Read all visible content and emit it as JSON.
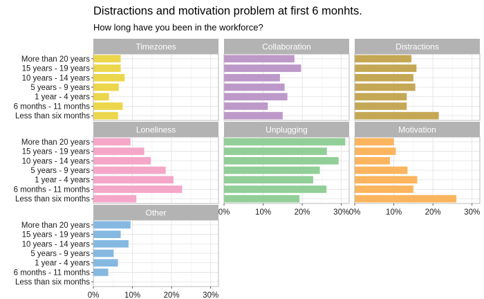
{
  "chart_data": {
    "type": "bar",
    "orientation": "horizontal",
    "title": "Distractions and motivation problem at first 6 monhts.",
    "subtitle": "How long have you been in the workforce?",
    "xlabel": "",
    "ylabel": "",
    "xlim": [
      0,
      0.32
    ],
    "x_ticks": [
      "0%",
      "10%",
      "20%",
      "30%"
    ],
    "x_tick_values": [
      0,
      0.1,
      0.2,
      0.3
    ],
    "grid": true,
    "categories": [
      "More than 20 years",
      "15 years - 19 years",
      "10 years - 14 years",
      "5 years - 9 years",
      "1 year - 4 years",
      "6 months - 11 months",
      "Less than six months"
    ],
    "facets": [
      {
        "name": "Timezones",
        "color": "#ecd64b",
        "values": [
          0.07,
          0.07,
          0.08,
          0.065,
          0.04,
          0.075,
          0.063
        ]
      },
      {
        "name": "Collaboration",
        "color": "#bd99c9",
        "values": [
          0.18,
          0.197,
          0.143,
          0.155,
          0.162,
          0.112,
          0.15
        ]
      },
      {
        "name": "Distractions",
        "color": "#c5a855",
        "values": [
          0.145,
          0.158,
          0.15,
          0.155,
          0.133,
          0.133,
          0.215
        ]
      },
      {
        "name": "Loneliness",
        "color": "#f5a7c9",
        "values": [
          0.095,
          0.13,
          0.147,
          0.185,
          0.205,
          0.227,
          0.11
        ]
      },
      {
        "name": "Unplugging",
        "color": "#92cf98",
        "values": [
          0.31,
          0.263,
          0.293,
          0.245,
          0.228,
          0.262,
          0.193
        ]
      },
      {
        "name": "Motivation",
        "color": "#fbb55e",
        "values": [
          0.1,
          0.105,
          0.09,
          0.135,
          0.16,
          0.15,
          0.26
        ]
      },
      {
        "name": "Other",
        "color": "#85b9e2",
        "values": [
          0.095,
          0.07,
          0.09,
          0.052,
          0.063,
          0.038,
          0
        ]
      }
    ]
  }
}
